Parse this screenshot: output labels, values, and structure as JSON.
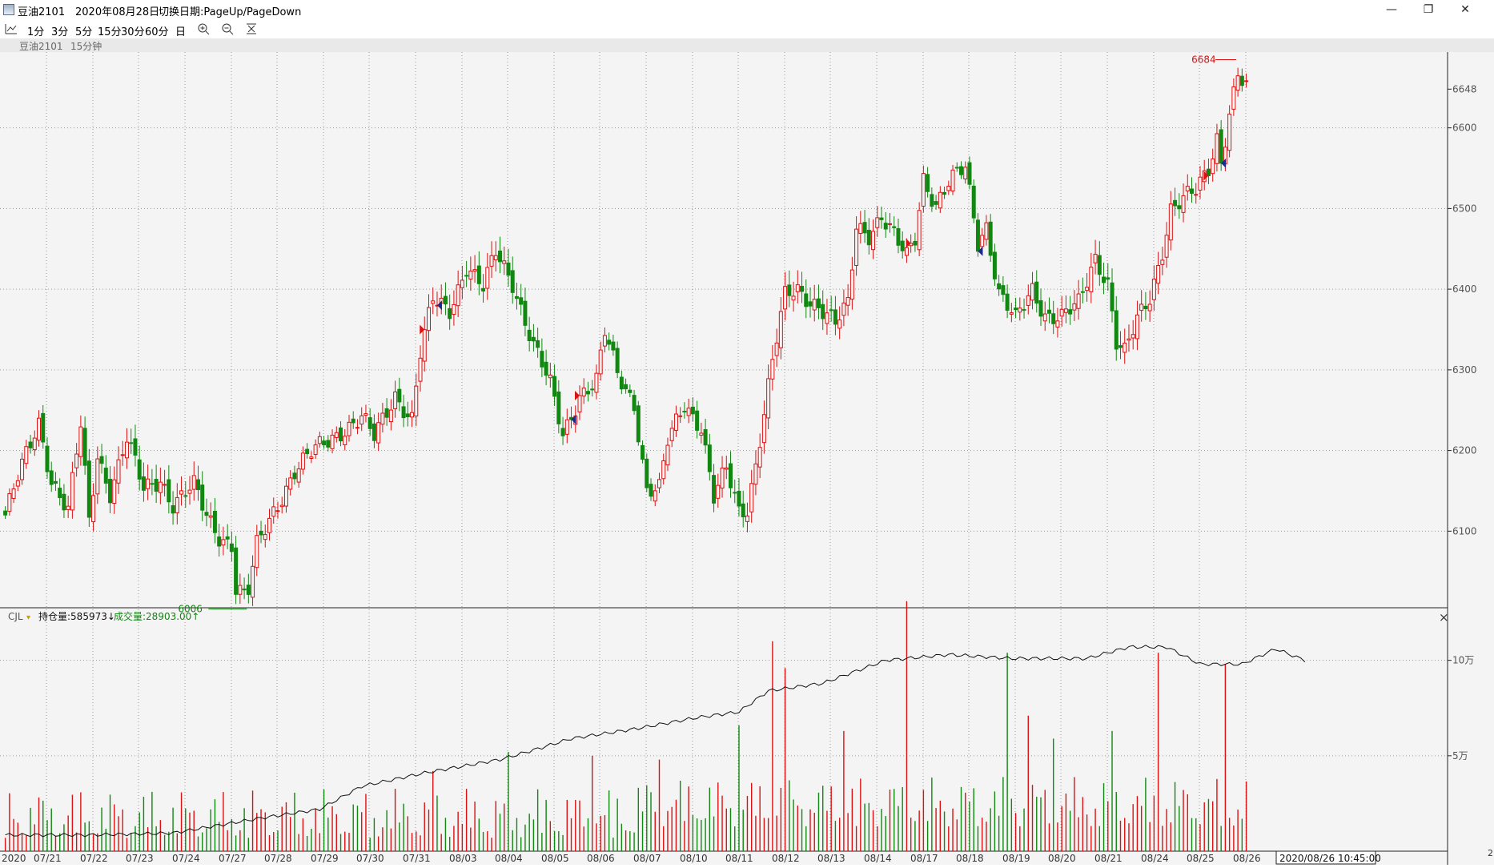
{
  "window": {
    "symbol": "豆油2101",
    "date": "2020年08月28日",
    "switch_hint": "切换日期:PageUp/PageDown",
    "minimize": "—",
    "restore": "❐",
    "close": "✕"
  },
  "toolbar": {
    "periods": [
      "1分",
      "3分",
      "5分",
      "15分",
      "30分",
      "60分",
      "日"
    ]
  },
  "subheader": {
    "symbol": "豆油2101",
    "period": "15分钟"
  },
  "indicator": {
    "name": "CJL",
    "arrow": "▾",
    "oi_label": "持仓量:585973↓",
    "vol_label": "成交量:28903.00↑",
    "close_btn": "×"
  },
  "colors": {
    "up": "#dd1111",
    "down": "#118811",
    "bg": "#f4f4f4",
    "text_axis": "#555555"
  },
  "chart_data": [
    {
      "type": "candlestick",
      "title": "豆油2101 15分钟",
      "x_dates": [
        "07/21",
        "07/22",
        "07/23",
        "07/24",
        "07/27",
        "07/28",
        "07/29",
        "07/30",
        "07/31",
        "08/03",
        "08/04",
        "08/05",
        "08/06",
        "08/07",
        "08/10",
        "08/11",
        "08/12",
        "08/13",
        "08/14",
        "08/17",
        "08/18",
        "08/19",
        "08/20",
        "08/21",
        "08/24",
        "08/25",
        "08/26"
      ],
      "ylim": [
        6010,
        6690
      ],
      "yticks": [
        6100,
        6200,
        6300,
        6400,
        6500,
        6600,
        6648
      ],
      "anchors": [
        [
          0,
          6120
        ],
        [
          3,
          6165
        ],
        [
          8,
          6235
        ],
        [
          11,
          6165
        ],
        [
          15,
          6125
        ],
        [
          18,
          6230
        ],
        [
          20,
          6110
        ],
        [
          22,
          6195
        ],
        [
          25,
          6150
        ],
        [
          29,
          6215
        ],
        [
          33,
          6150
        ],
        [
          37,
          6165
        ],
        [
          40,
          6135
        ],
        [
          45,
          6155
        ],
        [
          48,
          6118
        ],
        [
          51,
          6095
        ],
        [
          54,
          6085
        ],
        [
          55,
          6030
        ],
        [
          57,
          6020
        ],
        [
          58,
          6025
        ],
        [
          60,
          6080
        ],
        [
          64,
          6125
        ],
        [
          69,
          6175
        ],
        [
          74,
          6200
        ],
        [
          80,
          6225
        ],
        [
          85,
          6240
        ],
        [
          88,
          6215
        ],
        [
          93,
          6270
        ],
        [
          97,
          6240
        ],
        [
          99,
          6320
        ],
        [
          102,
          6385
        ],
        [
          106,
          6375
        ],
        [
          110,
          6430
        ],
        [
          114,
          6400
        ],
        [
          117,
          6445
        ],
        [
          121,
          6410
        ],
        [
          126,
          6330
        ],
        [
          130,
          6280
        ],
        [
          133,
          6220
        ],
        [
          137,
          6270
        ],
        [
          141,
          6285
        ],
        [
          143,
          6345
        ],
        [
          146,
          6295
        ],
        [
          150,
          6260
        ],
        [
          153,
          6150
        ],
        [
          156,
          6150
        ],
        [
          158,
          6210
        ],
        [
          162,
          6260
        ],
        [
          166,
          6230
        ],
        [
          169,
          6140
        ],
        [
          172,
          6175
        ],
        [
          175,
          6125
        ],
        [
          177,
          6130
        ],
        [
          179,
          6185
        ],
        [
          183,
          6310
        ],
        [
          186,
          6390
        ],
        [
          189,
          6400
        ],
        [
          194,
          6380
        ],
        [
          198,
          6355
        ],
        [
          201,
          6380
        ],
        [
          203,
          6480
        ],
        [
          206,
          6470
        ],
        [
          209,
          6490
        ],
        [
          213,
          6455
        ],
        [
          215,
          6440
        ],
        [
          217,
          6465
        ],
        [
          219,
          6540
        ],
        [
          222,
          6505
        ],
        [
          225,
          6530
        ],
        [
          229,
          6550
        ],
        [
          232,
          6460
        ],
        [
          234,
          6480
        ],
        [
          237,
          6395
        ],
        [
          241,
          6360
        ],
        [
          245,
          6400
        ],
        [
          248,
          6370
        ],
        [
          252,
          6365
        ],
        [
          256,
          6380
        ],
        [
          260,
          6440
        ],
        [
          263,
          6410
        ],
        [
          265,
          6335
        ],
        [
          267,
          6320
        ],
        [
          270,
          6360
        ],
        [
          273,
          6390
        ],
        [
          276,
          6450
        ],
        [
          278,
          6500
        ],
        [
          281,
          6510
        ],
        [
          284,
          6520
        ],
        [
          287,
          6550
        ],
        [
          289,
          6590
        ],
        [
          290,
          6560
        ],
        [
          292,
          6620
        ],
        [
          294,
          6665
        ],
        [
          296,
          6648
        ]
      ],
      "max_label": "6684",
      "min_label": "6006",
      "signals": [
        {
          "i": 100,
          "dir": "long"
        },
        {
          "i": 103,
          "dir": "short"
        },
        {
          "i": 135,
          "dir": "short"
        },
        {
          "i": 137,
          "dir": "long"
        },
        {
          "i": 216,
          "dir": "long"
        },
        {
          "i": 232,
          "dir": "short"
        },
        {
          "i": 287,
          "dir": "long"
        },
        {
          "i": 290,
          "dir": "short"
        }
      ]
    },
    {
      "type": "bar+line",
      "title": "CJL",
      "series": [
        {
          "name": "成交量",
          "values_note": "per-bar volume"
        },
        {
          "name": "持仓量",
          "values_note": "open interest line"
        }
      ],
      "ylim": [
        0,
        120000
      ],
      "yticks": [
        50000,
        100000
      ],
      "ytick_labels": [
        "5万",
        "10万"
      ],
      "oi_anchors": [
        [
          0,
          8500
        ],
        [
          20,
          8500
        ],
        [
          40,
          9500
        ],
        [
          60,
          17000
        ],
        [
          75,
          22000
        ],
        [
          85,
          34000
        ],
        [
          100,
          41000
        ],
        [
          118,
          48000
        ],
        [
          126,
          53000
        ],
        [
          135,
          59000
        ],
        [
          150,
          64000
        ],
        [
          165,
          70000
        ],
        [
          175,
          73000
        ],
        [
          182,
          84000
        ],
        [
          195,
          88000
        ],
        [
          210,
          100000
        ],
        [
          225,
          103000
        ],
        [
          240,
          101000
        ],
        [
          250,
          101000
        ],
        [
          258,
          101000
        ],
        [
          268,
          107000
        ],
        [
          277,
          107000
        ],
        [
          285,
          98000
        ],
        [
          295,
          98000
        ],
        [
          303,
          106000
        ],
        [
          310,
          100000
        ]
      ],
      "spikes": [
        [
          102,
          42000
        ],
        [
          120,
          52000
        ],
        [
          140,
          50000
        ],
        [
          156,
          48000
        ],
        [
          175,
          66000
        ],
        [
          183,
          110000
        ],
        [
          186,
          96000
        ],
        [
          200,
          63000
        ],
        [
          215,
          131000
        ],
        [
          239,
          104000
        ],
        [
          244,
          71000
        ],
        [
          250,
          59000
        ],
        [
          264,
          63000
        ],
        [
          275,
          104000
        ],
        [
          291,
          98000
        ],
        [
          300,
          82000
        ],
        [
          306,
          126000
        ]
      ]
    }
  ],
  "cursor_label": "2020/08/26 10:45:00",
  "right_edge_label": "2"
}
